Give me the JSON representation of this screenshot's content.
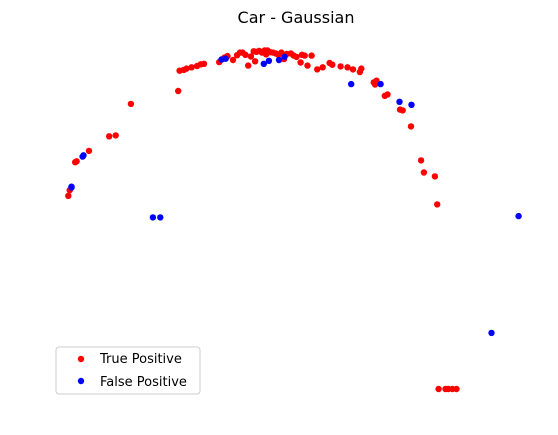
{
  "chart_data": {
    "type": "scatter",
    "title": "Car - Gaussian",
    "xlabel": "",
    "ylabel": "",
    "axes_visible": false,
    "grid": false,
    "xlim": [
      0,
      100
    ],
    "ylim": [
      0,
      80
    ],
    "legend_position": "bottom-left",
    "series": [
      {
        "name": "True Positive",
        "color": "#ff0000",
        "x": [
          0.5,
          0.8,
          2.0,
          2.3,
          5.0,
          9.4,
          10.8,
          14.1,
          24.4,
          24.7,
          25.6,
          26.2,
          27.3,
          28.5,
          29.3,
          30.0,
          33.3,
          33.9,
          34.5,
          35.1,
          36.3,
          37.2,
          37.8,
          38.4,
          39.0,
          39.6,
          40.2,
          40.8,
          41.1,
          41.4,
          42.0,
          42.6,
          43.2,
          43.5,
          43.8,
          44.4,
          45.0,
          45.6,
          46.2,
          46.8,
          47.4,
          48.0,
          48.9,
          49.5,
          50.1,
          51.0,
          51.3,
          51.9,
          52.5,
          53.4,
          54.6,
          55.8,
          57.3,
          57.9,
          59.7,
          61.2,
          62.4,
          63.9,
          64.2,
          66.9,
          67.2,
          67.5,
          69.3,
          69.9,
          72.6,
          73.2,
          75.0,
          77.2,
          77.8,
          80.2,
          80.7,
          81.0,
          82.5,
          83.1,
          84.0,
          84.9
        ],
        "y": [
          44.8,
          46.1,
          52.6,
          52.8,
          55.2,
          58.6,
          58.8,
          66.1,
          69.1,
          73.8,
          74.0,
          74.3,
          74.6,
          74.9,
          75.3,
          75.4,
          75.8,
          76.4,
          76.9,
          77.2,
          76.3,
          77.4,
          78.0,
          78.0,
          77.5,
          75.0,
          77.1,
          78.3,
          76.0,
          78.2,
          78.4,
          78.0,
          78.5,
          77.6,
          78.5,
          78.1,
          78.0,
          77.8,
          77.5,
          78.0,
          76.5,
          77.7,
          77.8,
          77.3,
          77.0,
          75.7,
          77.5,
          77.3,
          75.0,
          77.3,
          74.1,
          74.6,
          75.6,
          75.2,
          74.8,
          74.6,
          74.1,
          73.5,
          74.3,
          71.1,
          70.6,
          71.5,
          68.0,
          68.3,
          64.8,
          64.6,
          60.9,
          53.0,
          50.2,
          49.3,
          42.8,
          0.0,
          0.0,
          0.0,
          0.0,
          0.0
        ]
      },
      {
        "name": "False Positive",
        "color": "#0000ff",
        "x": [
          1.2,
          1.2,
          3.6,
          3.8,
          18.9,
          20.5,
          33.8,
          34.7,
          43.0,
          44.1,
          46.3,
          47.5,
          62.0,
          68.4,
          72.5,
          75.1,
          92.5,
          98.4
        ],
        "y": [
          46.7,
          46.9,
          53.9,
          54.2,
          39.8,
          39.8,
          76.4,
          76.6,
          75.4,
          76.1,
          76.3,
          77.0,
          70.7,
          70.7,
          66.6,
          65.9,
          13.0,
          40.1
        ]
      }
    ]
  }
}
